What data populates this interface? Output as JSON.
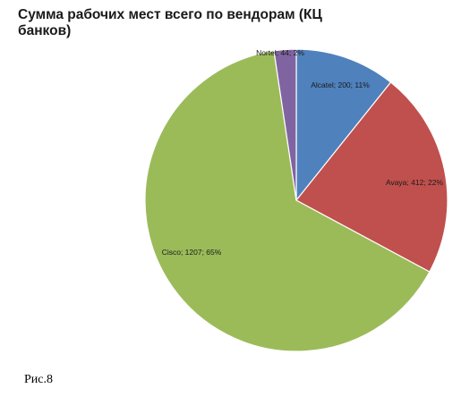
{
  "chart_data": {
    "type": "pie",
    "title": "Сумма рабочих мест всего по вендорам (КЦ банков)",
    "slices": [
      {
        "name": "Alcatel",
        "value": 200,
        "percent": 11,
        "label": "Alcatel; 200; 11%",
        "color": "#4F81BD"
      },
      {
        "name": "Avaya",
        "value": 412,
        "percent": 22,
        "label": "Avaya; 412; 22%",
        "color": "#C0504D"
      },
      {
        "name": "Cisco",
        "value": 1207,
        "percent": 65,
        "label": "Cisco; 1207; 65%",
        "color": "#9BBB59"
      },
      {
        "name": "Nortel",
        "value": 44,
        "percent": 2,
        "label": "Nortel; 44; 2%",
        "color": "#8064A2"
      }
    ],
    "legend": "none",
    "data_labels": "on"
  },
  "caption": "Рис.8"
}
